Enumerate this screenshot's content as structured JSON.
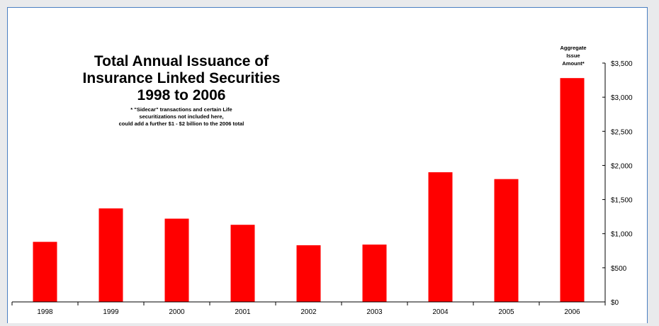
{
  "chart_data": {
    "type": "bar",
    "title": [
      "Total Annual Issuance of",
      "Insurance Linked Securities",
      "1998 to 2006"
    ],
    "note": [
      "* \"Sidecar\" transactions and certain Life",
      "securitizations not included here,",
      "could add a further $1 - $2 billion to the 2006 total"
    ],
    "annotation": [
      "Aggregate",
      "Issue",
      "Amount*"
    ],
    "categories": [
      "1998",
      "1999",
      "2000",
      "2001",
      "2002",
      "2003",
      "2004",
      "2005",
      "2006"
    ],
    "values": [
      880,
      1370,
      1220,
      1130,
      830,
      840,
      1900,
      1800,
      3280
    ],
    "ylim": [
      0,
      3500
    ],
    "yticks": [
      "$0",
      "$500",
      "$1,000",
      "$1,500",
      "$2,000",
      "$2,500",
      "$3,000",
      "$3,500"
    ],
    "ytick_values": [
      0,
      500,
      1000,
      1500,
      2000,
      2500,
      3000,
      3500
    ],
    "y_axis_side": "right",
    "grid": false,
    "xlabel": "",
    "ylabel": "",
    "bar_color": "#ff0000",
    "frame_color": "#4a7fc1"
  }
}
